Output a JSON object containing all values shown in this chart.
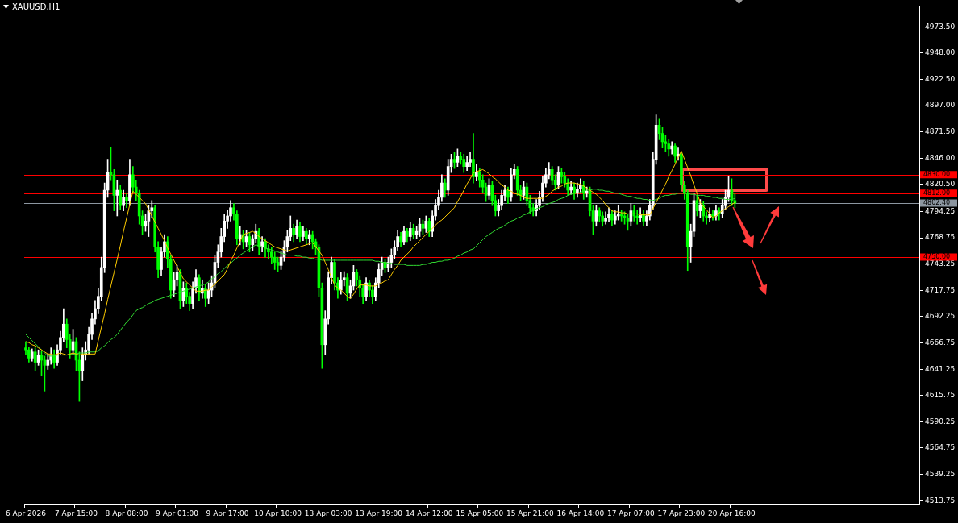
{
  "chart_data": {
    "type": "candlestick",
    "title": "XAUUSD,H1",
    "categories": [
      "6 Apr 2026",
      null,
      null,
      null,
      null,
      null,
      null,
      null,
      null,
      null,
      null,
      null,
      null,
      null,
      null,
      null,
      "7 Apr 15:00",
      null,
      null,
      null,
      null,
      null,
      null,
      null,
      null,
      null,
      null,
      null,
      null,
      null,
      null,
      null,
      "8 Apr 08:00",
      null,
      null,
      null,
      null,
      null,
      null,
      null,
      null,
      null,
      null,
      null,
      null,
      null,
      null,
      null,
      "9 Apr 01:00",
      null,
      null,
      null,
      null,
      null,
      null,
      null,
      null,
      null,
      null,
      null,
      null,
      null,
      null,
      null,
      "9 Apr 17:00",
      null,
      null,
      null,
      null,
      null,
      null,
      null,
      null,
      null,
      null,
      null,
      null,
      null,
      null,
      null,
      "10 Apr 10:00",
      null,
      null,
      null,
      null,
      null,
      null,
      null,
      null,
      null,
      null,
      null,
      null,
      null,
      null,
      null,
      "13 Apr 03:00",
      null,
      null,
      null,
      null,
      null,
      null,
      null,
      null,
      null,
      null,
      null,
      null,
      null,
      null,
      null,
      "13 Apr 19:00",
      null,
      null,
      null,
      null,
      null,
      null,
      null,
      null,
      null,
      null,
      null,
      null,
      null,
      null,
      null,
      "14 Apr 12:00",
      null,
      null,
      null,
      null,
      null,
      null,
      null,
      null,
      null,
      null,
      null,
      null,
      null,
      null,
      null,
      "15 Apr 05:00",
      null,
      null,
      null,
      null,
      null,
      null,
      null,
      null,
      null,
      null,
      null,
      null,
      null,
      null,
      null,
      "15 Apr 21:00",
      null,
      null,
      null,
      null,
      null,
      null,
      null,
      null,
      null,
      null,
      null,
      null,
      null,
      null,
      null,
      "16 Apr 14:00",
      null,
      null,
      null,
      null,
      null,
      null,
      null,
      null,
      null,
      null,
      null,
      null,
      null,
      null,
      null,
      "17 Apr 07:00",
      null,
      null,
      null,
      null,
      null,
      null,
      null,
      null,
      null,
      null,
      null,
      null,
      null,
      null,
      null,
      "17 Apr 23:00",
      null,
      null,
      null,
      null,
      null,
      null,
      null,
      null,
      null,
      null,
      null,
      null,
      null,
      null,
      null,
      "20 Apr 16:00",
      null,
      null,
      null,
      null,
      null,
      null,
      null,
      null,
      null,
      null,
      null,
      null,
      null,
      null,
      null,
      null,
      null,
      null,
      null,
      null,
      null,
      null,
      null,
      null,
      null,
      null,
      null,
      null,
      null,
      null,
      null,
      null,
      null,
      null,
      null,
      null,
      null,
      null,
      null,
      null,
      null,
      null,
      null,
      null,
      null,
      null,
      null,
      null,
      null,
      null,
      null,
      null,
      null,
      null,
      null,
      null,
      null,
      null,
      null
    ],
    "ohlc": [
      [
        4662,
        4668,
        4655,
        4660
      ],
      [
        4660,
        4663,
        4648,
        4652
      ],
      [
        4652,
        4661,
        4649,
        4658
      ],
      [
        4658,
        4662,
        4640,
        4648
      ],
      [
        4648,
        4660,
        4645,
        4655
      ],
      [
        4655,
        4659,
        4635,
        4650
      ],
      [
        4650,
        4654,
        4620,
        4645
      ],
      [
        4645,
        4656,
        4641,
        4650
      ],
      [
        4650,
        4662,
        4646,
        4655
      ],
      [
        4655,
        4660,
        4642,
        4648
      ],
      [
        4648,
        4665,
        4645,
        4660
      ],
      [
        4660,
        4678,
        4656,
        4672
      ],
      [
        4672,
        4700,
        4668,
        4685
      ],
      [
        4685,
        4690,
        4662,
        4670
      ],
      [
        4670,
        4675,
        4652,
        4660
      ],
      [
        4660,
        4680,
        4655,
        4668
      ],
      [
        4668,
        4672,
        4640,
        4650
      ],
      [
        4650,
        4658,
        4610,
        4640
      ],
      [
        4640,
        4662,
        4630,
        4655
      ],
      [
        4655,
        4668,
        4650,
        4660
      ],
      [
        4660,
        4682,
        4656,
        4675
      ],
      [
        4675,
        4695,
        4670,
        4690
      ],
      [
        4690,
        4708,
        4685,
        4700
      ],
      [
        4700,
        4720,
        4695,
        4712
      ],
      [
        4712,
        4750,
        4708,
        4740
      ],
      [
        4740,
        4822,
        4735,
        4815
      ],
      [
        4815,
        4845,
        4808,
        4832
      ],
      [
        4832,
        4857,
        4825,
        4830
      ],
      [
        4830,
        4835,
        4795,
        4810
      ],
      [
        4810,
        4825,
        4790,
        4815
      ],
      [
        4815,
        4820,
        4796,
        4800
      ],
      [
        4800,
        4815,
        4795,
        4808
      ],
      [
        4808,
        4812,
        4798,
        4805
      ],
      [
        4805,
        4845,
        4800,
        4830
      ],
      [
        4830,
        4838,
        4812,
        4818
      ],
      [
        4818,
        4825,
        4805,
        4812
      ],
      [
        4812,
        4815,
        4782,
        4790
      ],
      [
        4790,
        4795,
        4772,
        4780
      ],
      [
        4780,
        4792,
        4775,
        4785
      ],
      [
        4785,
        4800,
        4770,
        4795
      ],
      [
        4795,
        4805,
        4788,
        4798
      ],
      [
        4798,
        4800,
        4755,
        4760
      ],
      [
        4760,
        4765,
        4730,
        4738
      ],
      [
        4738,
        4760,
        4732,
        4755
      ],
      [
        4755,
        4772,
        4750,
        4765
      ],
      [
        4765,
        4770,
        4740,
        4748
      ],
      [
        4748,
        4752,
        4710,
        4718
      ],
      [
        4718,
        4735,
        4712,
        4728
      ],
      [
        4728,
        4742,
        4722,
        4735
      ],
      [
        4735,
        4738,
        4700,
        4708
      ],
      [
        4708,
        4726,
        4702,
        4720
      ],
      [
        4720,
        4725,
        4705,
        4712
      ],
      [
        4712,
        4716,
        4698,
        4705
      ],
      [
        4705,
        4726,
        4700,
        4720
      ],
      [
        4720,
        4738,
        4715,
        4730
      ],
      [
        4730,
        4733,
        4708,
        4715
      ],
      [
        4715,
        4728,
        4710,
        4720
      ],
      [
        4720,
        4724,
        4702,
        4710
      ],
      [
        4710,
        4725,
        4705,
        4718
      ],
      [
        4718,
        4732,
        4712,
        4725
      ],
      [
        4725,
        4752,
        4720,
        4745
      ],
      [
        4745,
        4762,
        4740,
        4755
      ],
      [
        4755,
        4778,
        4750,
        4770
      ],
      [
        4770,
        4792,
        4765,
        4785
      ],
      [
        4785,
        4796,
        4778,
        4790
      ],
      [
        4790,
        4805,
        4785,
        4798
      ],
      [
        4798,
        4802,
        4786,
        4792
      ],
      [
        4792,
        4795,
        4762,
        4768
      ],
      [
        4768,
        4780,
        4762,
        4772
      ],
      [
        4772,
        4776,
        4758,
        4765
      ],
      [
        4765,
        4776,
        4760,
        4770
      ],
      [
        4770,
        4774,
        4755,
        4762
      ],
      [
        4762,
        4772,
        4756,
        4768
      ],
      [
        4768,
        4782,
        4764,
        4775
      ],
      [
        4775,
        4778,
        4752,
        4760
      ],
      [
        4760,
        4770,
        4755,
        4765
      ],
      [
        4765,
        4768,
        4750,
        4758
      ],
      [
        4758,
        4762,
        4748,
        4755
      ],
      [
        4755,
        4760,
        4744,
        4750
      ],
      [
        4750,
        4755,
        4738,
        4745
      ],
      [
        4745,
        4750,
        4736,
        4742
      ],
      [
        4742,
        4756,
        4738,
        4750
      ],
      [
        4750,
        4766,
        4746,
        4760
      ],
      [
        4760,
        4776,
        4755,
        4770
      ],
      [
        4770,
        4790,
        4766,
        4778
      ],
      [
        4778,
        4782,
        4765,
        4772
      ],
      [
        4772,
        4786,
        4768,
        4780
      ],
      [
        4780,
        4784,
        4765,
        4770
      ],
      [
        4770,
        4780,
        4766,
        4775
      ],
      [
        4775,
        4778,
        4762,
        4768
      ],
      [
        4768,
        4776,
        4762,
        4772
      ],
      [
        4772,
        4775,
        4758,
        4765
      ],
      [
        4765,
        4768,
        4752,
        4760
      ],
      [
        4760,
        4762,
        4712,
        4720
      ],
      [
        4720,
        4725,
        4642,
        4665
      ],
      [
        4665,
        4698,
        4655,
        4690
      ],
      [
        4690,
        4736,
        4685,
        4730
      ],
      [
        4730,
        4750,
        4724,
        4745
      ],
      [
        4745,
        4748,
        4718,
        4725
      ],
      [
        4725,
        4730,
        4710,
        4718
      ],
      [
        4718,
        4735,
        4714,
        4728
      ],
      [
        4728,
        4736,
        4722,
        4730
      ],
      [
        4730,
        4734,
        4708,
        4715
      ],
      [
        4715,
        4728,
        4710,
        4722
      ],
      [
        4722,
        4742,
        4718,
        4735
      ],
      [
        4735,
        4738,
        4722,
        4728
      ],
      [
        4728,
        4732,
        4712,
        4720
      ],
      [
        4720,
        4724,
        4705,
        4712
      ],
      [
        4712,
        4730,
        4708,
        4725
      ],
      [
        4725,
        4728,
        4712,
        4718
      ],
      [
        4718,
        4722,
        4705,
        4712
      ],
      [
        4712,
        4730,
        4708,
        4725
      ],
      [
        4725,
        4744,
        4720,
        4738
      ],
      [
        4738,
        4750,
        4732,
        4745
      ],
      [
        4745,
        4748,
        4735,
        4740
      ],
      [
        4740,
        4750,
        4736,
        4745
      ],
      [
        4745,
        4758,
        4740,
        4752
      ],
      [
        4752,
        4766,
        4748,
        4760
      ],
      [
        4760,
        4776,
        4756,
        4770
      ],
      [
        4770,
        4774,
        4760,
        4765
      ],
      [
        4765,
        4780,
        4762,
        4775
      ],
      [
        4775,
        4778,
        4765,
        4770
      ],
      [
        4770,
        4784,
        4766,
        4778
      ],
      [
        4778,
        4782,
        4768,
        4772
      ],
      [
        4772,
        4780,
        4768,
        4775
      ],
      [
        4775,
        4788,
        4770,
        4782
      ],
      [
        4782,
        4786,
        4772,
        4778
      ],
      [
        4778,
        4790,
        4774,
        4785
      ],
      [
        4785,
        4788,
        4770,
        4775
      ],
      [
        4775,
        4795,
        4770,
        4790
      ],
      [
        4790,
        4806,
        4786,
        4800
      ],
      [
        4800,
        4815,
        4796,
        4808
      ],
      [
        4808,
        4830,
        4804,
        4822
      ],
      [
        4822,
        4826,
        4808,
        4815
      ],
      [
        4815,
        4845,
        4810,
        4838
      ],
      [
        4838,
        4850,
        4832,
        4845
      ],
      [
        4845,
        4852,
        4836,
        4842
      ],
      [
        4842,
        4855,
        4838,
        4848
      ],
      [
        4848,
        4852,
        4840,
        4845
      ],
      [
        4845,
        4850,
        4832,
        4838
      ],
      [
        4838,
        4848,
        4834,
        4842
      ],
      [
        4842,
        4852,
        4838,
        4845
      ],
      [
        4845,
        4870,
        4822,
        4828
      ],
      [
        4828,
        4840,
        4824,
        4832
      ],
      [
        4832,
        4836,
        4818,
        4825
      ],
      [
        4825,
        4830,
        4812,
        4818
      ],
      [
        4818,
        4822,
        4804,
        4810
      ],
      [
        4810,
        4826,
        4806,
        4820
      ],
      [
        4820,
        4824,
        4800,
        4805
      ],
      [
        4805,
        4810,
        4790,
        4795
      ],
      [
        4795,
        4806,
        4790,
        4800
      ],
      [
        4800,
        4815,
        4796,
        4810
      ],
      [
        4810,
        4820,
        4805,
        4815
      ],
      [
        4815,
        4818,
        4802,
        4808
      ],
      [
        4808,
        4836,
        4804,
        4830
      ],
      [
        4830,
        4840,
        4826,
        4835
      ],
      [
        4835,
        4838,
        4810,
        4815
      ],
      [
        4815,
        4820,
        4805,
        4810
      ],
      [
        4810,
        4824,
        4806,
        4818
      ],
      [
        4818,
        4822,
        4800,
        4805
      ],
      [
        4805,
        4810,
        4792,
        4798
      ],
      [
        4798,
        4802,
        4790,
        4795
      ],
      [
        4795,
        4806,
        4790,
        4800
      ],
      [
        4800,
        4814,
        4796,
        4808
      ],
      [
        4808,
        4828,
        4804,
        4822
      ],
      [
        4822,
        4836,
        4818,
        4830
      ],
      [
        4830,
        4842,
        4826,
        4835
      ],
      [
        4835,
        4838,
        4820,
        4825
      ],
      [
        4825,
        4830,
        4815,
        4820
      ],
      [
        4820,
        4838,
        4816,
        4832
      ],
      [
        4832,
        4836,
        4822,
        4828
      ],
      [
        4828,
        4832,
        4818,
        4822
      ],
      [
        4822,
        4826,
        4810,
        4815
      ],
      [
        4815,
        4824,
        4811,
        4818
      ],
      [
        4818,
        4822,
        4806,
        4812
      ],
      [
        4812,
        4822,
        4808,
        4816
      ],
      [
        4816,
        4826,
        4812,
        4820
      ],
      [
        4820,
        4824,
        4806,
        4812
      ],
      [
        4812,
        4818,
        4808,
        4814
      ],
      [
        4814,
        4818,
        4790,
        4795
      ],
      [
        4795,
        4800,
        4772,
        4785
      ],
      [
        4785,
        4800,
        4780,
        4795
      ],
      [
        4795,
        4798,
        4784,
        4790
      ],
      [
        4790,
        4794,
        4780,
        4785
      ],
      [
        4785,
        4794,
        4782,
        4788
      ],
      [
        4788,
        4798,
        4784,
        4792
      ],
      [
        4792,
        4796,
        4780,
        4786
      ],
      [
        4786,
        4795,
        4782,
        4790
      ],
      [
        4790,
        4800,
        4786,
        4792
      ],
      [
        4792,
        4796,
        4785,
        4790
      ],
      [
        4790,
        4794,
        4782,
        4788
      ],
      [
        4788,
        4792,
        4776,
        4785
      ],
      [
        4785,
        4802,
        4780,
        4795
      ],
      [
        4795,
        4800,
        4785,
        4790
      ],
      [
        4790,
        4796,
        4782,
        4788
      ],
      [
        4788,
        4798,
        4784,
        4792
      ],
      [
        4792,
        4796,
        4780,
        4785
      ],
      [
        4785,
        4795,
        4780,
        4790
      ],
      [
        4790,
        4806,
        4786,
        4800
      ],
      [
        4800,
        4852,
        4796,
        4845
      ],
      [
        4845,
        4888,
        4840,
        4878
      ],
      [
        4878,
        4884,
        4864,
        4870
      ],
      [
        4870,
        4876,
        4856,
        4862
      ],
      [
        4862,
        4868,
        4852,
        4860
      ],
      [
        4860,
        4864,
        4848,
        4855
      ],
      [
        4855,
        4862,
        4850,
        4858
      ],
      [
        4858,
        4860,
        4842,
        4848
      ],
      [
        4848,
        4856,
        4844,
        4850
      ],
      [
        4850,
        4852,
        4815,
        4820
      ],
      [
        4820,
        4824,
        4806,
        4812
      ],
      [
        4812,
        4815,
        4737,
        4760
      ],
      [
        4760,
        4782,
        4745,
        4775
      ],
      [
        4775,
        4812,
        4770,
        4805
      ],
      [
        4805,
        4810,
        4790,
        4795
      ],
      [
        4795,
        4806,
        4788,
        4800
      ],
      [
        4800,
        4804,
        4785,
        4790
      ],
      [
        4790,
        4794,
        4782,
        4788
      ],
      [
        4788,
        4798,
        4784,
        4792
      ],
      [
        4792,
        4796,
        4786,
        4790
      ],
      [
        4790,
        4800,
        4786,
        4795
      ],
      [
        4795,
        4798,
        4786,
        4792
      ],
      [
        4792,
        4806,
        4788,
        4800
      ],
      [
        4800,
        4815,
        4796,
        4808
      ],
      [
        4808,
        4828,
        4804,
        4815
      ],
      [
        4815,
        4826,
        4800,
        4805
      ],
      [
        4805,
        4812,
        4798,
        4802.4
      ],
      null,
      null,
      null,
      null,
      null,
      null,
      null,
      null,
      null,
      null,
      null,
      null,
      null,
      null,
      null,
      null,
      null,
      null,
      null,
      null,
      null,
      null,
      null,
      null,
      null,
      null,
      null,
      null,
      null,
      null,
      null,
      null,
      null,
      null,
      null,
      null,
      null,
      null,
      null,
      null,
      null,
      null,
      null,
      null,
      null,
      null,
      null,
      null,
      null,
      null,
      null,
      null,
      null,
      null,
      null,
      null,
      null,
      null
    ],
    "series": [
      {
        "type": "line",
        "color": "#ffcc00",
        "values": [
          4668,
          4667,
          4665,
          4664,
          4662,
          4660,
          4658,
          4656,
          4656,
          4655,
          4656,
          4657,
          4656,
          4655,
          4656,
          4657,
          4656,
          4655,
          4656,
          4656,
          4656,
          4656,
          4656,
          4669,
          4682,
          4695,
          4709,
          4722,
          4735,
          4748,
          4761,
          4775,
          4788,
          4801,
          4814,
          4811,
          4808,
          4805,
          4802,
          4796,
          4790,
          4784,
          4778,
          4772,
          4766,
          4759,
          4753,
          4747,
          4741,
          4735,
          4729,
          4726,
          4723,
          4720,
          4717,
          4717,
          4717,
          4718,
          4718,
          4721,
          4724,
          4727,
          4730,
          4733,
          4739,
          4746,
          4752,
          4759,
          4765,
          4772,
          4773,
          4774,
          4775,
          4773,
          4770,
          4768,
          4766,
          4764,
          4762,
          4760,
          4759,
          4758,
          4757,
          4756,
          4757,
          4758,
          4759,
          4760,
          4761,
          4762,
          4763,
          4764,
          4760,
          4756,
          4752,
          4745,
          4738,
          4730,
          4723,
          4720,
          4718,
          4715,
          4712,
          4710,
          4714,
          4719,
          4723,
          4723,
          4723,
          4722,
          4722,
          4722,
          4724,
          4725,
          4727,
          4728,
          4733,
          4738,
          4742,
          4747,
          4750,
          4753,
          4756,
          4760,
          4763,
          4766,
          4769,
          4772,
          4775,
          4778,
          4781,
          4784,
          4786,
          4789,
          4792,
          4795,
          4798,
          4804,
          4809,
          4815,
          4821,
          4826,
          4832,
          4833,
          4834,
          4835,
          4833,
          4831,
          4828,
          4826,
          4823,
          4820,
          4818,
          4815,
          4814,
          4812,
          4811,
          4810,
          4808,
          4807,
          4807,
          4807,
          4807,
          4807,
          4807,
          4809,
          4811,
          4814,
          4816,
          4818,
          4819,
          4821,
          4822,
          4822,
          4822,
          4821,
          4821,
          4819,
          4817,
          4815,
          4813,
          4811,
          4808,
          4805,
          4801,
          4798,
          4795,
          4794,
          4794,
          4793,
          4793,
          4792,
          4792,
          4792,
          4792,
          4791,
          4791,
          4791,
          4791,
          4797,
          4803,
          4809,
          4815,
          4821,
          4828,
          4834,
          4840,
          4847,
          4853,
          4845,
          4837,
          4829,
          4820,
          4812,
          4803,
          4799,
          4796,
          4792,
          4788,
          4790,
          4793,
          4795,
          4797,
          4799,
          4801,
          4803,
          null,
          null,
          null,
          null,
          null,
          null,
          null,
          null,
          null,
          null,
          null,
          null,
          null,
          null,
          null,
          null,
          null,
          null,
          null,
          null,
          null,
          null,
          null,
          null,
          null,
          null,
          null,
          null,
          null,
          null,
          null,
          null,
          null,
          null,
          null,
          null,
          null,
          null,
          null,
          null,
          null,
          null,
          null,
          null,
          null,
          null,
          null,
          null,
          null,
          null,
          null,
          null,
          null,
          null,
          null,
          null,
          null,
          null
        ]
      },
      {
        "type": "line",
        "color": "#32dc32",
        "values": [
          4675,
          4672,
          4669,
          4666,
          4663,
          4660,
          4657,
          4654,
          4654,
          4654,
          4655,
          4655,
          4655,
          4655,
          4656,
          4656,
          4656,
          4657,
          4657,
          4657,
          4658,
          4658,
          4658,
          4659,
          4662,
          4664,
          4667,
          4670,
          4672,
          4675,
          4679,
          4683,
          4687,
          4690,
          4694,
          4698,
          4700,
          4701,
          4703,
          4705,
          4706,
          4708,
          4709,
          4710,
          4711,
          4712,
          4713,
          4714,
          4715,
          4716,
          4717,
          4718,
          4719,
          4720,
          4721,
          4722,
          4723,
          4724,
          4726,
          4729,
          4731,
          4734,
          4736,
          4739,
          4742,
          4744,
          4747,
          4749,
          4752,
          4754,
          4756,
          4758,
          4760,
          4762,
          4761,
          4760,
          4759,
          4758,
          4757,
          4756,
          4755,
          4754,
          4753,
          4752,
          4752,
          4752,
          4751,
          4751,
          4750,
          4750,
          4749,
          4749,
          4748,
          4748,
          4747,
          4747,
          4747,
          4747,
          4747,
          4747,
          4747,
          4747,
          4747,
          4747,
          4747,
          4747,
          4747,
          4747,
          4747,
          4747,
          4747,
          4746,
          4746,
          4745,
          4745,
          4744,
          4744,
          4743,
          4743,
          4743,
          4743,
          4742,
          4742,
          4742,
          4742,
          4742,
          4743,
          4743,
          4744,
          4745,
          4745,
          4746,
          4746,
          4747,
          4747,
          4748,
          4749,
          4751,
          4752,
          4754,
          4755,
          4757,
          4758,
          4761,
          4764,
          4767,
          4770,
          4772,
          4774,
          4776,
          4778,
          4779,
          4781,
          4783,
          4785,
          4786,
          4788,
          4789,
          4791,
          4792,
          4794,
          4795,
          4797,
          4798,
          4799,
          4801,
          4802,
          4803,
          4804,
          4806,
          4807,
          4808,
          4810,
          4811,
          4812,
          4812,
          4813,
          4814,
          4815,
          4815,
          4816,
          4816,
          4815,
          4815,
          4814,
          4814,
          4813,
          4812,
          4812,
          4811,
          4810,
          4809,
          4809,
          4808,
          4807,
          4807,
          4806,
          4806,
          4805,
          4805,
          4806,
          4807,
          4809,
          4810,
          4810,
          4811,
          4811,
          4812,
          4812,
          4812,
          4812,
          4811,
          4811,
          4810,
          4810,
          4810,
          4809,
          4809,
          4808,
          4808,
          4807,
          4807,
          4806,
          4806,
          4806,
          4807,
          null,
          null,
          null,
          null,
          null,
          null,
          null,
          null,
          null,
          null,
          null,
          null,
          null,
          null,
          null,
          null,
          null,
          null,
          null,
          null,
          null,
          null,
          null,
          null,
          null,
          null,
          null,
          null,
          null,
          null,
          null,
          null,
          null,
          null,
          null,
          null,
          null,
          null,
          null,
          null,
          null,
          null,
          null,
          null,
          null,
          null,
          null,
          null,
          null,
          null,
          null,
          null,
          null,
          null,
          null,
          null,
          null,
          null
        ]
      }
    ],
    "ylim": [
      4510,
      4993
    ],
    "yticks": [
      {
        "value": 4973.5,
        "label": "4973.50"
      },
      {
        "value": 4948,
        "label": "4948.00"
      },
      {
        "value": 4922.5,
        "label": "4922.50"
      },
      {
        "value": 4897,
        "label": "4897.00"
      },
      {
        "value": 4871.5,
        "label": "4871.50"
      },
      {
        "value": 4846,
        "label": "4846.00"
      },
      {
        "value": 4820.5,
        "label": "4820.50"
      },
      {
        "value": 4794.25,
        "label": "4794.25"
      },
      {
        "value": 4768.75,
        "label": "4768.75"
      },
      {
        "value": 4743.25,
        "label": "4743.25"
      },
      {
        "value": 4717.75,
        "label": "4717.75"
      },
      {
        "value": 4692.25,
        "label": "4692.25"
      },
      {
        "value": 4666.75,
        "label": "4666.75"
      },
      {
        "value": 4641.25,
        "label": "4641.25"
      },
      {
        "value": 4615.75,
        "label": "4615.75"
      },
      {
        "value": 4590.25,
        "label": "4590.25"
      },
      {
        "value": 4564.75,
        "label": "4564.75"
      },
      {
        "value": 4539.25,
        "label": "4539.25"
      },
      {
        "value": 4513.75,
        "label": "4513.75"
      }
    ],
    "ref_lines": [
      {
        "axis": "y",
        "value": 4830,
        "label": "4830.00",
        "color": "#ff0000"
      },
      {
        "axis": "y",
        "value": 4812,
        "label": "4812.00",
        "color": "#ff0000"
      },
      {
        "axis": "y",
        "value": 4802.4,
        "label": "4802.40",
        "color": "#8c96a0"
      },
      {
        "axis": "y",
        "value": 4750,
        "label": "4750.00",
        "color": "#ff0000"
      }
    ],
    "grid": false,
    "legend": false
  }
}
